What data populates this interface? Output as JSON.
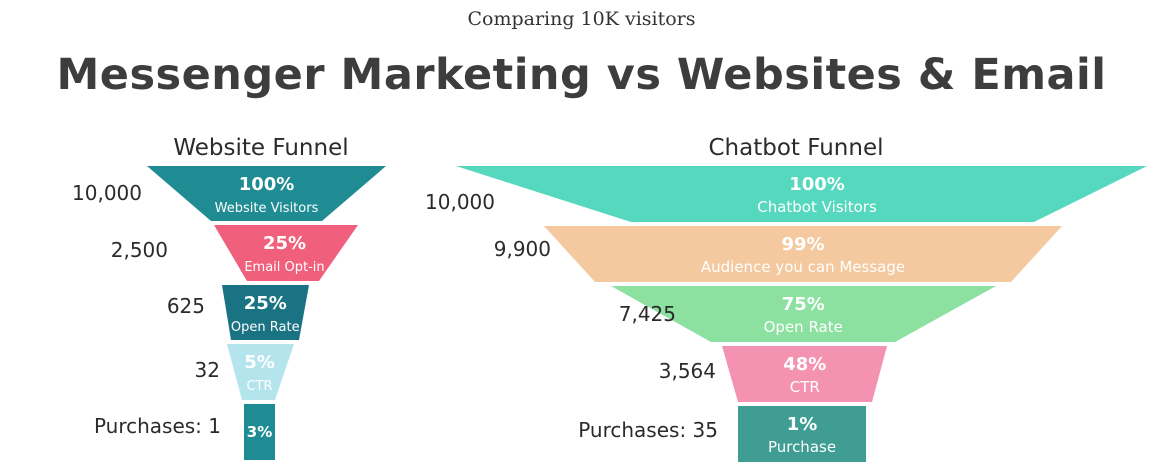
{
  "header": {
    "subtitle": "Comparing 10K visitors",
    "title": "Messenger Marketing vs Websites & Email"
  },
  "chart_data": [
    {
      "type": "funnel",
      "title": "Website Funnel",
      "stages": [
        {
          "label": "Website Visitors",
          "percent": "100%",
          "count": "10,000",
          "color": "#1f8c93"
        },
        {
          "label": "Email Opt-in",
          "percent": "25%",
          "count": "2,500",
          "color": "#f0607d"
        },
        {
          "label": "Open Rate",
          "percent": "25%",
          "count": "625",
          "color": "#1a7383"
        },
        {
          "label": "CTR",
          "percent": "5%",
          "count": "32",
          "color": "#b4e4ec"
        },
        {
          "label": "",
          "percent": "3%",
          "count": "Purchases: 1",
          "color": "#1f8c93"
        }
      ]
    },
    {
      "type": "funnel",
      "title": "Chatbot Funnel",
      "stages": [
        {
          "label": "Chatbot Visitors",
          "percent": "100%",
          "count": "10,000",
          "color": "#55d8bd"
        },
        {
          "label": "Audience you can Message",
          "percent": "99%",
          "count": "9,900",
          "color": "#f4c99f"
        },
        {
          "label": "Open Rate",
          "percent": "75%",
          "count": "7,425",
          "color": "#8ce0a0"
        },
        {
          "label": "CTR",
          "percent": "48%",
          "count": "3,564",
          "color": "#f493b1"
        },
        {
          "label": "Purchase",
          "percent": "1%",
          "count": "Purchases: 35",
          "color": "#3f9d93"
        }
      ]
    }
  ]
}
